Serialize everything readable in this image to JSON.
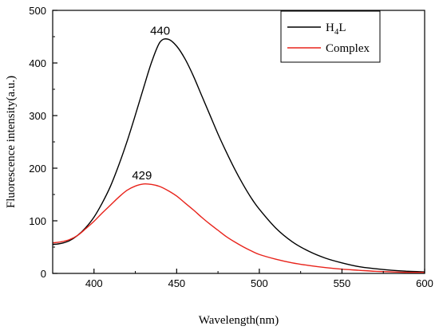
{
  "chart_data": {
    "type": "line",
    "title": "",
    "xlabel": "Wavelength(nm)",
    "ylabel": "Fluorescence intensity(a.u.)",
    "xlim": [
      375,
      600
    ],
    "ylim": [
      0,
      500
    ],
    "xticks": [
      400,
      450,
      500,
      550,
      600
    ],
    "yticks": [
      0,
      100,
      200,
      300,
      400,
      500
    ],
    "grid": false,
    "legend_position": "top-right",
    "legend": [
      {
        "main": "H",
        "sub": "4",
        "tail": "L",
        "color": "#000000"
      },
      {
        "main": "Complex",
        "sub": "",
        "tail": "",
        "color": "#e8231b"
      }
    ],
    "series": [
      {
        "color": "#000000",
        "x": [
          375,
          380,
          385,
          390,
          395,
          400,
          405,
          410,
          415,
          420,
          425,
          430,
          435,
          440,
          445,
          450,
          455,
          460,
          465,
          470,
          475,
          480,
          485,
          490,
          495,
          500,
          510,
          520,
          530,
          540,
          550,
          560,
          570,
          580,
          590,
          600
        ],
        "y": [
          55,
          57,
          62,
          72,
          87,
          107,
          134,
          166,
          206,
          251,
          301,
          353,
          403,
          440,
          445,
          432,
          408,
          376,
          339,
          302,
          265,
          231,
          199,
          170,
          144,
          122,
          86,
          60,
          42,
          29,
          20,
          13,
          9,
          6,
          4,
          3
        ]
      },
      {
        "color": "#e8231b",
        "x": [
          375,
          380,
          385,
          390,
          395,
          400,
          405,
          410,
          415,
          420,
          425,
          430,
          435,
          440,
          445,
          450,
          455,
          460,
          465,
          470,
          475,
          480,
          485,
          490,
          495,
          500,
          510,
          520,
          530,
          540,
          550,
          560,
          570,
          580,
          590,
          600
        ],
        "y": [
          58,
          60,
          64,
          72,
          85,
          99,
          115,
          130,
          145,
          158,
          166,
          170,
          169,
          165,
          157,
          147,
          134,
          121,
          107,
          94,
          82,
          70,
          60,
          51,
          43,
          36,
          27,
          20,
          15,
          11,
          8,
          6,
          4,
          3,
          2,
          2
        ]
      }
    ],
    "annotations": [
      {
        "text": "440",
        "x": 440,
        "y": 445
      },
      {
        "text": "429",
        "x": 429,
        "y": 170
      }
    ]
  }
}
